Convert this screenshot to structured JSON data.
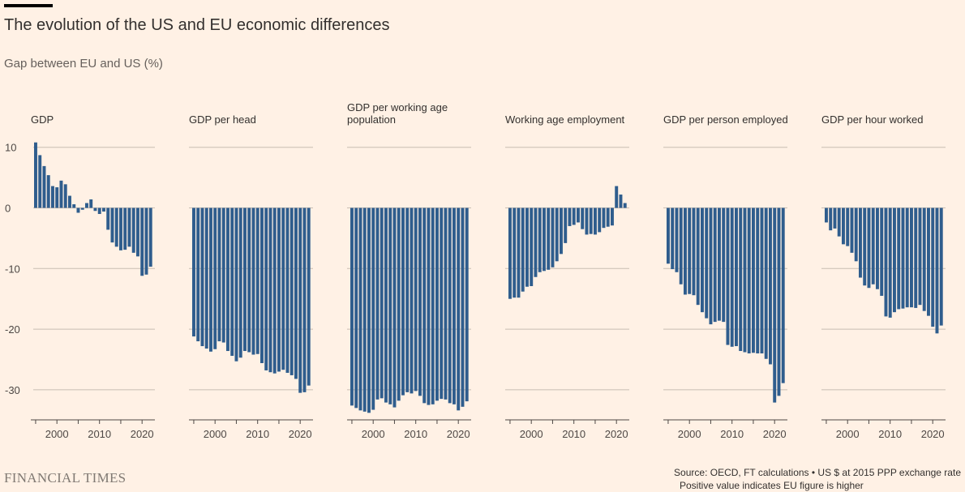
{
  "title": "The evolution of the US and EU economic differences",
  "subtitle": "Gap between EU and US (%)",
  "source": "Source: OECD, FT calculations • US $ at 2015 PPP exchange rate",
  "note": "Positive value indicates EU figure is higher",
  "brand": "FINANCIAL TIMES",
  "colors": {
    "bar": "#2f5d8d",
    "grid": "#c8bdb2",
    "axis": "#4d4845",
    "background": "#fff1e5"
  },
  "chart_data": [
    {
      "type": "bar",
      "title": [
        "GDP"
      ],
      "x_start": 1995,
      "x_end": 2022,
      "ylim": [
        -35,
        10
      ],
      "yticks": [
        "10",
        "0",
        "-10",
        "-20",
        "-30"
      ],
      "ytick_values": [
        10,
        0,
        -10,
        -20,
        -30
      ],
      "xticks": [
        "2000",
        "2010",
        "2020"
      ],
      "xtick_values": [
        2000,
        2010,
        2020
      ],
      "values": [
        10.8,
        8.7,
        6.9,
        5.4,
        3.6,
        3.4,
        4.5,
        3.9,
        2.0,
        0.6,
        -0.8,
        -0.3,
        0.8,
        1.4,
        -0.5,
        -1.0,
        -0.6,
        -3.6,
        -5.7,
        -6.4,
        -7.0,
        -6.9,
        -6.4,
        -7.4,
        -8.0,
        -11.2,
        -11.0,
        -9.7
      ]
    },
    {
      "type": "bar",
      "title": [
        "GDP per head"
      ],
      "x_start": 1995,
      "x_end": 2022,
      "ylim": [
        -35,
        10
      ],
      "xticks": [
        "2000",
        "2010",
        "2020"
      ],
      "xtick_values": [
        2000,
        2010,
        2020
      ],
      "values": [
        -21.2,
        -22.0,
        -22.8,
        -23.2,
        -23.7,
        -23.3,
        -22.0,
        -22.2,
        -23.6,
        -24.4,
        -25.3,
        -24.7,
        -23.6,
        -23.8,
        -24.2,
        -24.1,
        -25.6,
        -26.8,
        -27.1,
        -27.3,
        -27.0,
        -26.7,
        -27.2,
        -27.6,
        -28.2,
        -30.5,
        -30.4,
        -29.3
      ]
    },
    {
      "type": "bar",
      "title": [
        "GDP per working age",
        "population"
      ],
      "x_start": 1995,
      "x_end": 2022,
      "ylim": [
        -35,
        10
      ],
      "xticks": [
        "2000",
        "2010",
        "2020"
      ],
      "xtick_values": [
        2000,
        2010,
        2020
      ],
      "values": [
        -32.6,
        -33.0,
        -33.4,
        -33.6,
        -33.8,
        -33.3,
        -31.6,
        -31.4,
        -32.1,
        -32.4,
        -32.9,
        -31.8,
        -30.9,
        -30.4,
        -30.6,
        -30.2,
        -31.0,
        -32.2,
        -32.5,
        -32.4,
        -31.8,
        -31.5,
        -31.6,
        -32.2,
        -32.4,
        -33.4,
        -32.8,
        -31.9
      ]
    },
    {
      "type": "bar",
      "title": [
        "Working age employment"
      ],
      "x_start": 1995,
      "x_end": 2022,
      "ylim": [
        -35,
        10
      ],
      "xticks": [
        "2000",
        "2010",
        "2020"
      ],
      "xtick_values": [
        2000,
        2010,
        2020
      ],
      "values": [
        -15.0,
        -14.8,
        -14.8,
        -13.8,
        -13.0,
        -12.9,
        -11.4,
        -10.6,
        -10.4,
        -10.2,
        -9.8,
        -8.8,
        -7.6,
        -5.8,
        -3.0,
        -2.8,
        -2.4,
        -3.5,
        -4.4,
        -4.3,
        -4.4,
        -4.0,
        -3.3,
        -3.1,
        -2.9,
        3.6,
        2.2,
        0.8
      ]
    },
    {
      "type": "bar",
      "title": [
        "GDP per person employed"
      ],
      "x_start": 1995,
      "x_end": 2022,
      "ylim": [
        -35,
        10
      ],
      "xticks": [
        "2000",
        "2010",
        "2020"
      ],
      "xtick_values": [
        2000,
        2010,
        2020
      ],
      "values": [
        -9.2,
        -10.1,
        -10.6,
        -12.6,
        -14.3,
        -14.2,
        -14.4,
        -16.0,
        -17.2,
        -18.2,
        -19.2,
        -18.8,
        -18.6,
        -18.8,
        -22.6,
        -22.9,
        -22.8,
        -23.6,
        -23.8,
        -24.0,
        -23.9,
        -24.0,
        -24.0,
        -24.9,
        -25.8,
        -32.1,
        -31.0,
        -28.9
      ]
    },
    {
      "type": "bar",
      "title": [
        "GDP per hour worked"
      ],
      "x_start": 1995,
      "x_end": 2022,
      "ylim": [
        -35,
        10
      ],
      "xticks": [
        "2000",
        "2010",
        "2020"
      ],
      "xtick_values": [
        2000,
        2010,
        2020
      ],
      "values": [
        -2.4,
        -3.7,
        -3.4,
        -4.7,
        -6.0,
        -6.3,
        -7.4,
        -8.8,
        -11.5,
        -12.8,
        -13.2,
        -12.6,
        -13.4,
        -14.5,
        -17.9,
        -18.1,
        -17.2,
        -16.7,
        -16.6,
        -16.4,
        -16.4,
        -16.5,
        -16.0,
        -17.0,
        -17.8,
        -19.6,
        -20.7,
        -19.4
      ]
    }
  ]
}
